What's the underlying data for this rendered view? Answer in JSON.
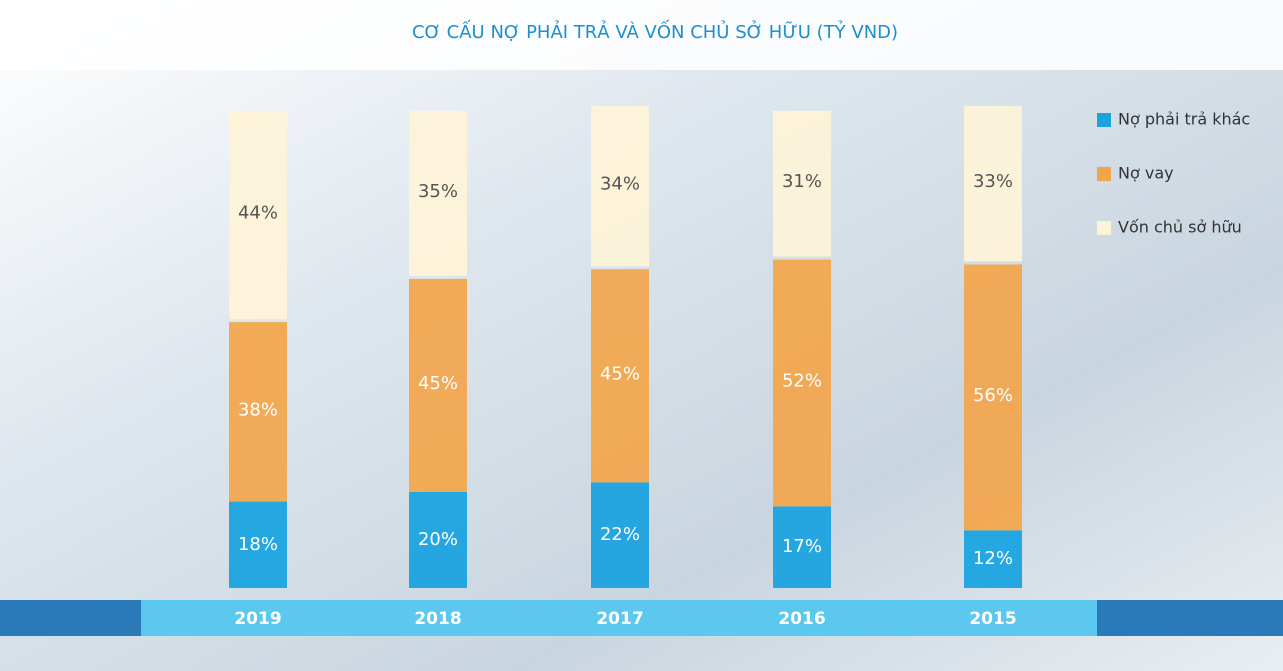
{
  "chart_data": {
    "type": "stacked_bar",
    "title": "CƠ CẤU NỢ PHẢI TRẢ VÀ VỐN CHỦ SỞ HỮU (TỶ VND)",
    "categories": [
      "2019",
      "2018",
      "2017",
      "2016",
      "2015"
    ],
    "series": [
      {
        "name": "Nợ phải trả khác",
        "color": "#1ba3e0",
        "values": [
          18,
          20,
          22,
          17,
          12
        ],
        "value_labels": [
          "18%",
          "20%",
          "22%",
          "17%",
          "12%"
        ]
      },
      {
        "name": "Nợ vay",
        "color": "#f3a54a",
        "values": [
          38,
          45,
          45,
          52,
          56
        ],
        "value_labels": [
          "38%",
          "45%",
          "45%",
          "52%",
          "56%"
        ]
      },
      {
        "name": "Vốn chủ sở hữu",
        "color": "#fdf3d8",
        "values": [
          44,
          35,
          34,
          31,
          33
        ],
        "value_labels": [
          "44%",
          "35%",
          "34%",
          "31%",
          "33%"
        ]
      }
    ]
  }
}
